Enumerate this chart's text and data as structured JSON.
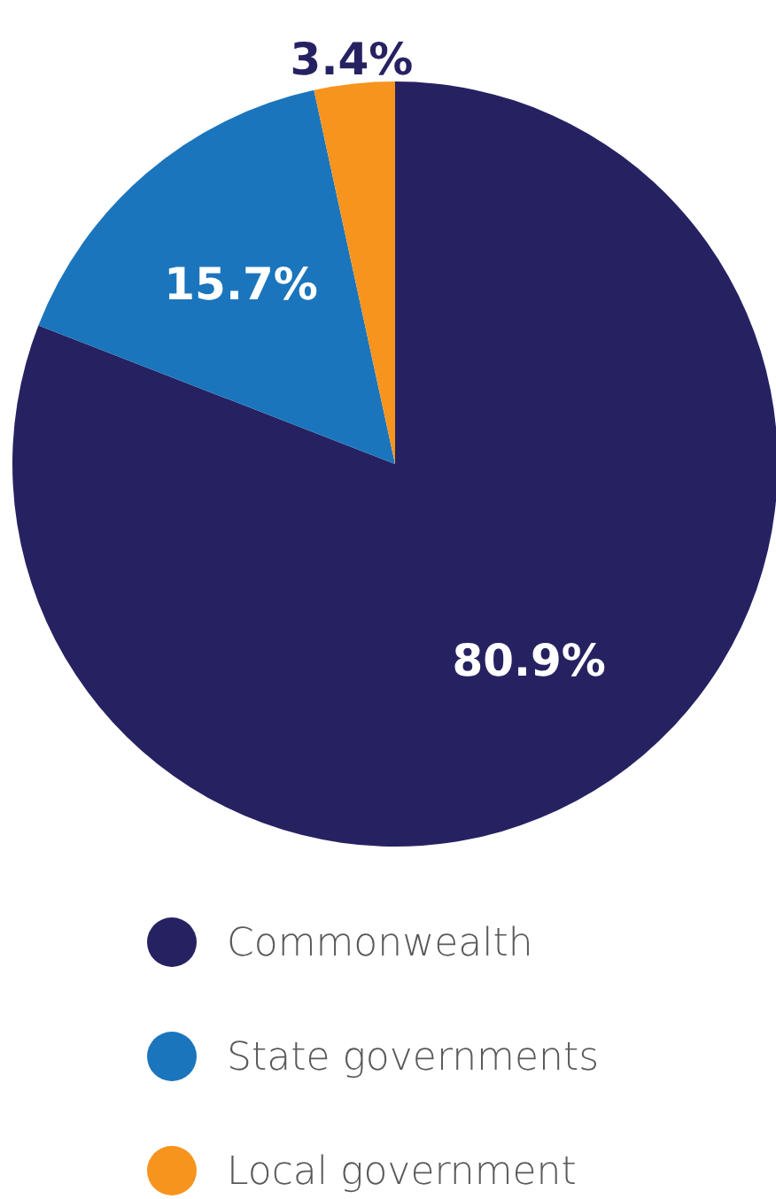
{
  "chart_data": {
    "type": "pie",
    "categories": [
      "Commonwealth",
      "State governments",
      "Local government"
    ],
    "values": [
      80.9,
      15.7,
      3.4
    ],
    "colors": [
      "#262262",
      "#1b75bc",
      "#f7941d"
    ],
    "value_labels": [
      "80.9%",
      "15.7%",
      "3.4%"
    ],
    "legend": "bottom"
  }
}
